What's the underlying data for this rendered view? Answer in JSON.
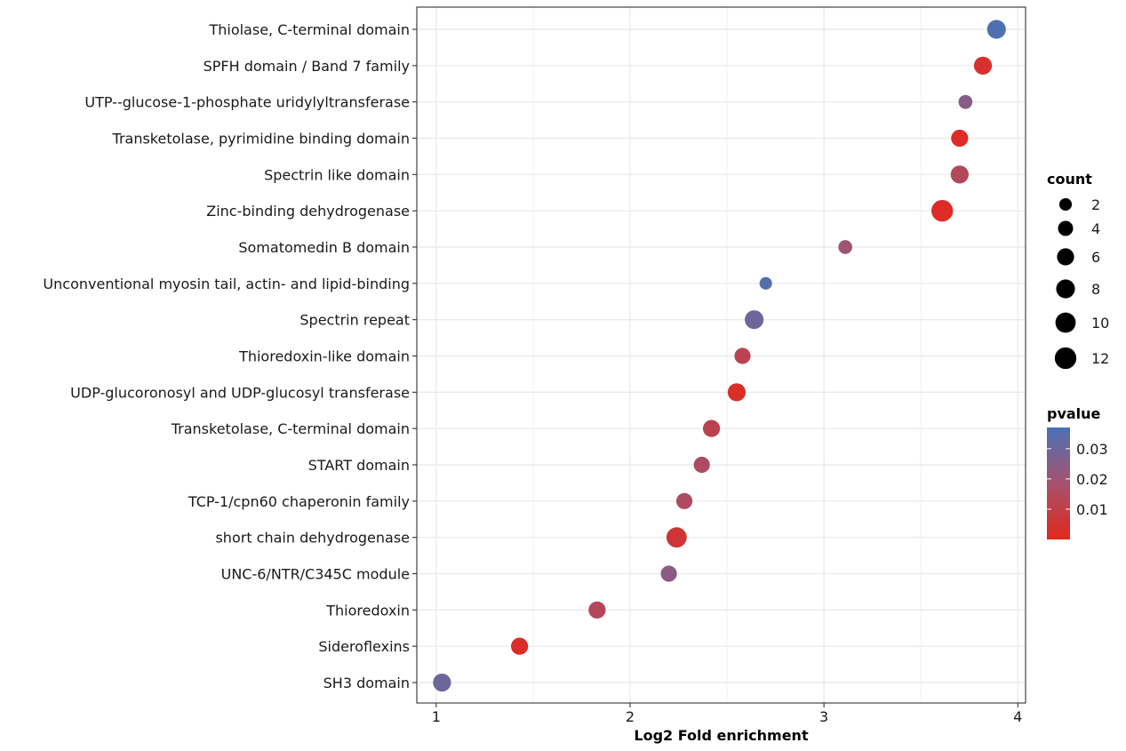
{
  "chart_data": {
    "type": "scatter",
    "title": "",
    "xlabel": "Log2 Fold enrichment",
    "ylabel": "",
    "xlim": [
      0.9,
      4.04
    ],
    "x_ticks": [
      1,
      2,
      3,
      4
    ],
    "grid": true,
    "legend_placement": "right",
    "categories": [
      "Thiolase, C-terminal domain",
      "SPFH domain / Band 7 family",
      "UTP--glucose-1-phosphate uridylyltransferase",
      "Transketolase, pyrimidine binding domain",
      "Spectrin like domain",
      "Zinc-binding dehydrogenase",
      "Somatomedin B domain",
      "Unconventional myosin tail, actin- and lipid-binding",
      "Spectrin repeat",
      "Thioredoxin-like domain",
      "UDP-glucoronosyl and UDP-glucosyl transferase",
      "Transketolase, C-terminal domain",
      "START domain",
      "TCP-1/cpn60 chaperonin family",
      "short chain dehydrogenase",
      "UNC-6/NTR/C345C module",
      "Thioredoxin",
      "Sideroflexins",
      "SH3 domain"
    ],
    "points": [
      {
        "x": 3.89,
        "count": 8,
        "pvalue": 0.036
      },
      {
        "x": 3.82,
        "count": 7,
        "pvalue": 0.004
      },
      {
        "x": 3.73,
        "count": 3,
        "pvalue": 0.025
      },
      {
        "x": 3.7,
        "count": 6,
        "pvalue": 0.002
      },
      {
        "x": 3.7,
        "count": 7,
        "pvalue": 0.014
      },
      {
        "x": 3.61,
        "count": 12,
        "pvalue": 0.002
      },
      {
        "x": 3.11,
        "count": 3,
        "pvalue": 0.02
      },
      {
        "x": 2.7,
        "count": 2,
        "pvalue": 0.035
      },
      {
        "x": 2.64,
        "count": 8,
        "pvalue": 0.03
      },
      {
        "x": 2.58,
        "count": 5,
        "pvalue": 0.012
      },
      {
        "x": 2.55,
        "count": 7,
        "pvalue": 0.003
      },
      {
        "x": 2.42,
        "count": 6,
        "pvalue": 0.012
      },
      {
        "x": 2.37,
        "count": 5,
        "pvalue": 0.016
      },
      {
        "x": 2.28,
        "count": 5,
        "pvalue": 0.016
      },
      {
        "x": 2.24,
        "count": 10,
        "pvalue": 0.006
      },
      {
        "x": 2.2,
        "count": 5,
        "pvalue": 0.024
      },
      {
        "x": 1.83,
        "count": 6,
        "pvalue": 0.014
      },
      {
        "x": 1.43,
        "count": 6,
        "pvalue": 0.002
      },
      {
        "x": 1.03,
        "count": 7,
        "pvalue": 0.03
      }
    ],
    "legend_size": {
      "title": "count",
      "values": [
        2,
        4,
        6,
        8,
        10,
        12
      ],
      "labels": [
        "2",
        "4",
        "6",
        "8",
        "10",
        "12"
      ]
    },
    "legend_color": {
      "title": "pvalue",
      "low_color": "#e3281c",
      "mid_color": "#a6516e",
      "high_color": "#4a72b4",
      "min": 0.0,
      "max": 0.037,
      "ticks": [
        0.01,
        0.02,
        0.03
      ],
      "tick_labels": [
        "0.01",
        "0.02",
        "0.03"
      ]
    }
  }
}
